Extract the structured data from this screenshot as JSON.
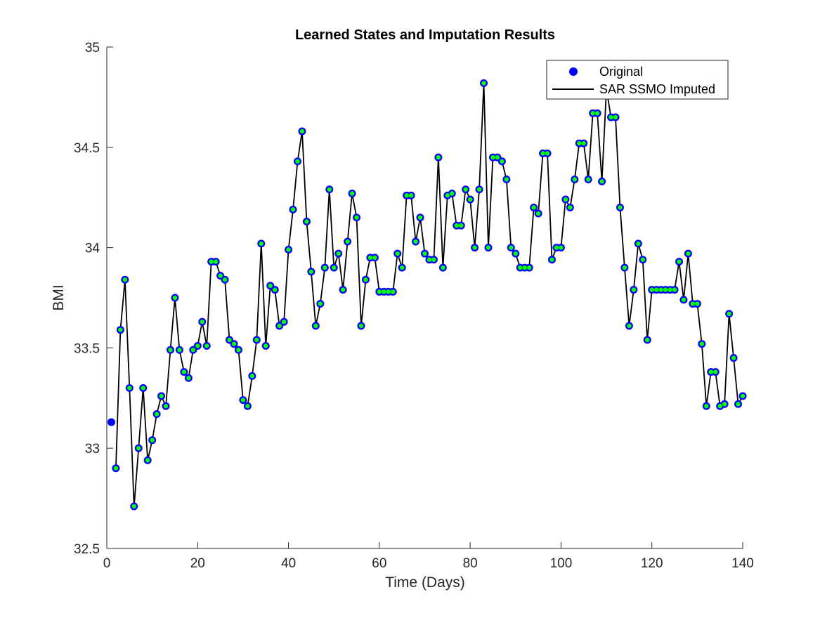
{
  "chart_data": {
    "type": "line",
    "title": "Learned States and Imputation Results",
    "xlabel": "Time (Days)",
    "ylabel": "BMI",
    "xlim": [
      0,
      140
    ],
    "ylim": [
      32.5,
      35
    ],
    "xticks": [
      0,
      20,
      40,
      60,
      80,
      100,
      120,
      140
    ],
    "yticks": [
      32.5,
      33,
      33.5,
      34,
      34.5,
      35
    ],
    "xtick_labels": [
      "0",
      "20",
      "40",
      "60",
      "80",
      "100",
      "120",
      "140"
    ],
    "ytick_labels": [
      "32.5",
      "33",
      "33.5",
      "34",
      "34.5",
      "35"
    ],
    "grid": false,
    "legend_position": "top-right",
    "series": [
      {
        "name": "Original",
        "kind": "marker",
        "color": "#0000ff",
        "values": [
          33.13,
          32.9,
          33.59,
          33.84,
          33.3,
          32.71,
          33.0,
          33.3,
          32.94,
          33.04,
          33.17,
          33.26,
          33.21,
          33.49,
          33.75,
          33.49,
          33.38,
          33.35,
          33.49,
          33.51,
          33.63,
          33.51,
          33.93,
          33.93,
          33.86,
          33.84,
          33.54,
          33.52,
          33.49,
          33.24,
          33.21,
          33.36,
          33.54,
          34.02,
          33.51,
          33.81,
          33.79,
          33.61,
          33.63,
          33.99,
          34.19,
          34.43,
          34.58,
          34.13,
          33.88,
          33.61,
          33.72,
          33.9,
          34.29,
          33.9,
          33.97,
          33.79,
          34.03,
          34.27,
          34.15,
          33.61,
          33.84,
          33.95,
          33.95,
          33.78,
          33.78,
          33.78,
          33.78,
          33.97,
          33.9,
          34.26,
          34.26,
          34.03,
          34.15,
          33.97,
          33.94,
          33.94,
          34.45,
          33.9,
          34.26,
          34.27,
          34.11,
          34.11,
          34.29,
          34.24,
          34.0,
          34.29,
          34.82,
          34.0,
          34.45,
          34.45,
          34.43,
          34.34,
          34.0,
          33.97,
          33.9,
          33.9,
          33.9,
          34.2,
          34.17,
          34.47,
          34.47,
          33.94,
          34.0,
          34.0,
          34.24,
          34.2,
          34.34,
          34.52,
          34.52,
          34.34,
          34.67,
          34.67,
          34.33,
          34.79,
          34.65,
          34.65,
          34.2,
          33.9,
          33.61,
          33.79,
          34.02,
          33.94,
          33.54,
          33.79,
          33.79,
          33.79,
          33.79,
          33.79,
          33.79,
          33.93,
          33.74,
          33.97,
          33.72,
          33.72,
          33.52,
          33.21,
          33.38,
          33.38,
          33.21,
          33.22,
          33.67,
          33.45,
          33.22,
          33.26
        ]
      },
      {
        "name": "SAR SSMO Imputed",
        "kind": "line",
        "color": "#000000",
        "marker_fill": "#00ff00",
        "values": [
          null,
          32.9,
          33.59,
          33.84,
          33.3,
          32.71,
          33.0,
          33.3,
          32.94,
          33.04,
          33.17,
          33.26,
          33.21,
          33.49,
          33.75,
          33.49,
          33.38,
          33.35,
          33.49,
          33.51,
          33.63,
          33.51,
          33.93,
          33.93,
          33.86,
          33.84,
          33.54,
          33.52,
          33.49,
          33.24,
          33.21,
          33.36,
          33.54,
          34.02,
          33.51,
          33.81,
          33.79,
          33.61,
          33.63,
          33.99,
          34.19,
          34.43,
          34.58,
          34.13,
          33.88,
          33.61,
          33.72,
          33.9,
          34.29,
          33.9,
          33.97,
          33.79,
          34.03,
          34.27,
          34.15,
          33.61,
          33.84,
          33.95,
          33.95,
          33.78,
          33.78,
          33.78,
          33.78,
          33.97,
          33.9,
          34.26,
          34.26,
          34.03,
          34.15,
          33.97,
          33.94,
          33.94,
          34.45,
          33.9,
          34.26,
          34.27,
          34.11,
          34.11,
          34.29,
          34.24,
          34.0,
          34.29,
          34.82,
          34.0,
          34.45,
          34.45,
          34.43,
          34.34,
          34.0,
          33.97,
          33.9,
          33.9,
          33.9,
          34.2,
          34.17,
          34.47,
          34.47,
          33.94,
          34.0,
          34.0,
          34.24,
          34.2,
          34.34,
          34.52,
          34.52,
          34.34,
          34.67,
          34.67,
          34.33,
          34.79,
          34.65,
          34.65,
          34.2,
          33.9,
          33.61,
          33.79,
          34.02,
          33.94,
          33.54,
          33.79,
          33.79,
          33.79,
          33.79,
          33.79,
          33.79,
          33.93,
          33.74,
          33.97,
          33.72,
          33.72,
          33.52,
          33.21,
          33.38,
          33.38,
          33.21,
          33.22,
          33.67,
          33.45,
          33.22,
          33.26
        ]
      }
    ],
    "x": [
      1,
      2,
      3,
      4,
      5,
      6,
      7,
      8,
      9,
      10,
      11,
      12,
      13,
      14,
      15,
      16,
      17,
      18,
      19,
      20,
      21,
      22,
      23,
      24,
      25,
      26,
      27,
      28,
      29,
      30,
      31,
      32,
      33,
      34,
      35,
      36,
      37,
      38,
      39,
      40,
      41,
      42,
      43,
      44,
      45,
      46,
      47,
      48,
      49,
      50,
      51,
      52,
      53,
      54,
      55,
      56,
      57,
      58,
      59,
      60,
      61,
      62,
      63,
      64,
      65,
      66,
      67,
      68,
      69,
      70,
      71,
      72,
      73,
      74,
      75,
      76,
      77,
      78,
      79,
      80,
      81,
      82,
      83,
      84,
      85,
      86,
      87,
      88,
      89,
      90,
      91,
      92,
      93,
      94,
      95,
      96,
      97,
      98,
      99,
      100,
      101,
      102,
      103,
      104,
      105,
      106,
      107,
      108,
      109,
      110,
      111,
      112,
      113,
      114,
      115,
      116,
      117,
      118,
      119,
      120,
      121,
      122,
      123,
      124,
      125,
      126,
      127,
      128,
      129,
      130,
      131,
      132,
      133,
      134,
      135,
      136,
      137,
      138,
      139,
      140
    ]
  }
}
